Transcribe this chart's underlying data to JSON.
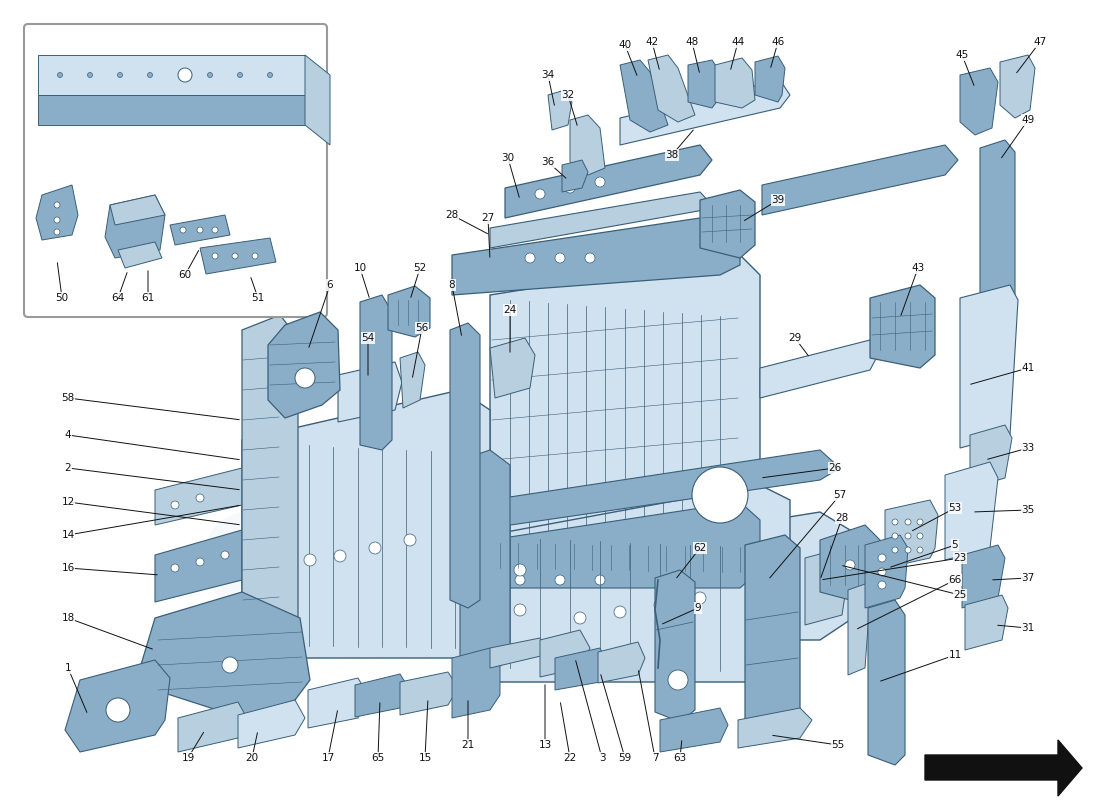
{
  "bg_color": "#ffffff",
  "blue1": "#b8cfe0",
  "blue2": "#8aaec8",
  "blue3": "#d0e2ef",
  "outline": "#3a5f78",
  "black": "#111111",
  "wm1": "#dce8f0",
  "wm2": "#c8d8e4",
  "gold": "#d4c870"
}
